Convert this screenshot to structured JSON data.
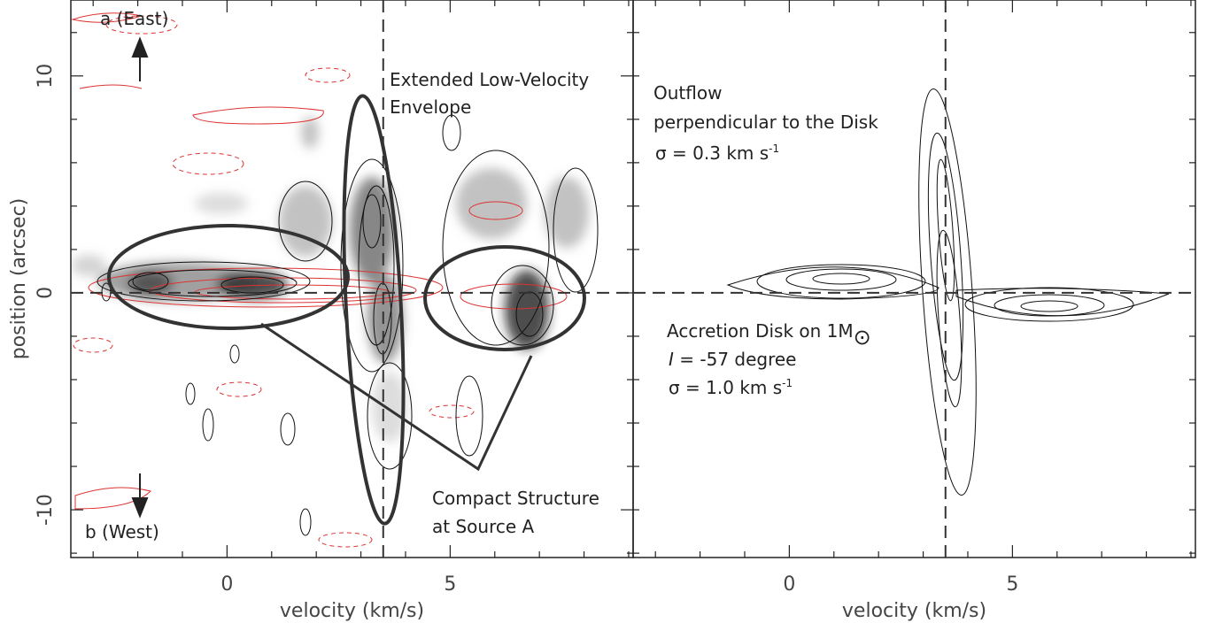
{
  "chart_data": {
    "type": "pv-diagram",
    "panels": [
      {
        "xlabel": "velocity (km/s)",
        "ylabel": "position (arcsec)",
        "xlim": [
          -3.5,
          9.1
        ],
        "ylim": [
          -12.2,
          13.5
        ],
        "xticks": [
          0,
          5
        ],
        "yticks": [
          -10,
          0,
          10
        ],
        "xminor": [
          -3,
          -2,
          -1,
          1,
          2,
          3,
          4,
          6,
          7,
          8,
          9
        ],
        "yminor": [
          -12,
          -8,
          -6,
          -4,
          -2,
          2,
          4,
          6,
          8,
          12
        ],
        "ref_x": 3.5,
        "ref_y": 0,
        "annotations": {
          "east": "a (East)",
          "west": "b (West)",
          "envelope": [
            "Extended Low-Velocity",
            "Envelope"
          ],
          "compact": [
            "Compact Structure",
            "at Source A"
          ]
        }
      },
      {
        "xlabel": "velocity (km/s)",
        "xlim": [
          -3.5,
          9.1
        ],
        "ylim": [
          -12.2,
          13.5
        ],
        "xticks": [
          0,
          5
        ],
        "xminor": [
          -3,
          -2,
          -1,
          1,
          2,
          3,
          4,
          6,
          7,
          8,
          9
        ],
        "yminor": [
          -12,
          -10,
          -8,
          -6,
          -4,
          -2,
          2,
          4,
          6,
          8,
          10,
          12
        ],
        "ref_x": 3.5,
        "ref_y": 0,
        "annotations": {
          "outflow": [
            "Outflow",
            "perpendicular to the Disk"
          ],
          "outflow_sigma": {
            "text": "σ  = 0.3 km s",
            "sup": "-1"
          },
          "disk": {
            "text": "Accretion Disk on 1M",
            "symbol": "⊙"
          },
          "inclination": {
            "symbol": "I",
            "text": " = -57 degree"
          },
          "disk_sigma": {
            "text": "σ  = 1.0 km s",
            "sup": "-1"
          }
        }
      }
    ]
  }
}
